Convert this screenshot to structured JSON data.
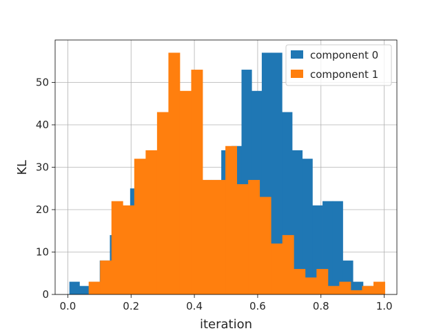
{
  "chart_data": {
    "type": "bar",
    "subtype": "histogram",
    "xlabel": "iteration",
    "ylabel": "KL",
    "xlim": [
      -0.04,
      1.04
    ],
    "ylim": [
      0,
      60
    ],
    "xticks": [
      "0.0",
      "0.2",
      "0.4",
      "0.6",
      "0.8",
      "1.0"
    ],
    "yticks": [
      "0",
      "10",
      "20",
      "30",
      "40",
      "50"
    ],
    "grid": true,
    "legend_position": "top-right",
    "series": [
      {
        "name": "component 0",
        "color": "#1f77b4",
        "bins": [
          [
            0.005,
            0.037,
            3
          ],
          [
            0.037,
            0.069,
            2
          ],
          [
            0.069,
            0.101,
            3
          ],
          [
            0.101,
            0.133,
            8
          ],
          [
            0.133,
            0.165,
            14
          ],
          [
            0.165,
            0.197,
            19
          ],
          [
            0.197,
            0.229,
            25
          ],
          [
            0.229,
            0.261,
            29
          ],
          [
            0.261,
            0.293,
            33
          ],
          [
            0.293,
            0.325,
            36
          ],
          [
            0.325,
            0.357,
            38
          ],
          [
            0.357,
            0.389,
            40
          ],
          [
            0.389,
            0.421,
            40
          ],
          [
            0.421,
            0.453,
            27
          ],
          [
            0.453,
            0.485,
            27
          ],
          [
            0.485,
            0.517,
            34
          ],
          [
            0.517,
            0.549,
            35
          ],
          [
            0.549,
            0.581,
            53
          ],
          [
            0.581,
            0.613,
            48
          ],
          [
            0.613,
            0.645,
            57
          ],
          [
            0.645,
            0.677,
            57
          ],
          [
            0.677,
            0.709,
            43
          ],
          [
            0.709,
            0.741,
            34
          ],
          [
            0.741,
            0.773,
            32
          ],
          [
            0.773,
            0.805,
            21
          ],
          [
            0.805,
            0.837,
            22
          ],
          [
            0.837,
            0.869,
            22
          ],
          [
            0.869,
            0.901,
            8
          ],
          [
            0.901,
            0.933,
            3
          ],
          [
            0.933,
            0.965,
            2
          ]
        ]
      },
      {
        "name": "component 1",
        "color": "#ff7f0e",
        "bins": [
          [
            0.066,
            0.102,
            3
          ],
          [
            0.102,
            0.138,
            8
          ],
          [
            0.138,
            0.174,
            22
          ],
          [
            0.174,
            0.21,
            21
          ],
          [
            0.21,
            0.246,
            32
          ],
          [
            0.246,
            0.282,
            34
          ],
          [
            0.282,
            0.318,
            43
          ],
          [
            0.318,
            0.354,
            57
          ],
          [
            0.354,
            0.39,
            48
          ],
          [
            0.39,
            0.426,
            53
          ],
          [
            0.426,
            0.462,
            27
          ],
          [
            0.462,
            0.498,
            27
          ],
          [
            0.498,
            0.534,
            35
          ],
          [
            0.534,
            0.57,
            26
          ],
          [
            0.57,
            0.606,
            27
          ],
          [
            0.606,
            0.642,
            23
          ],
          [
            0.642,
            0.678,
            12
          ],
          [
            0.678,
            0.714,
            14
          ],
          [
            0.714,
            0.75,
            6
          ],
          [
            0.75,
            0.786,
            4
          ],
          [
            0.786,
            0.822,
            6
          ],
          [
            0.822,
            0.858,
            2
          ],
          [
            0.858,
            0.894,
            3
          ],
          [
            0.894,
            0.93,
            1
          ],
          [
            0.93,
            0.966,
            2
          ],
          [
            0.966,
            1.002,
            3
          ]
        ]
      }
    ]
  }
}
